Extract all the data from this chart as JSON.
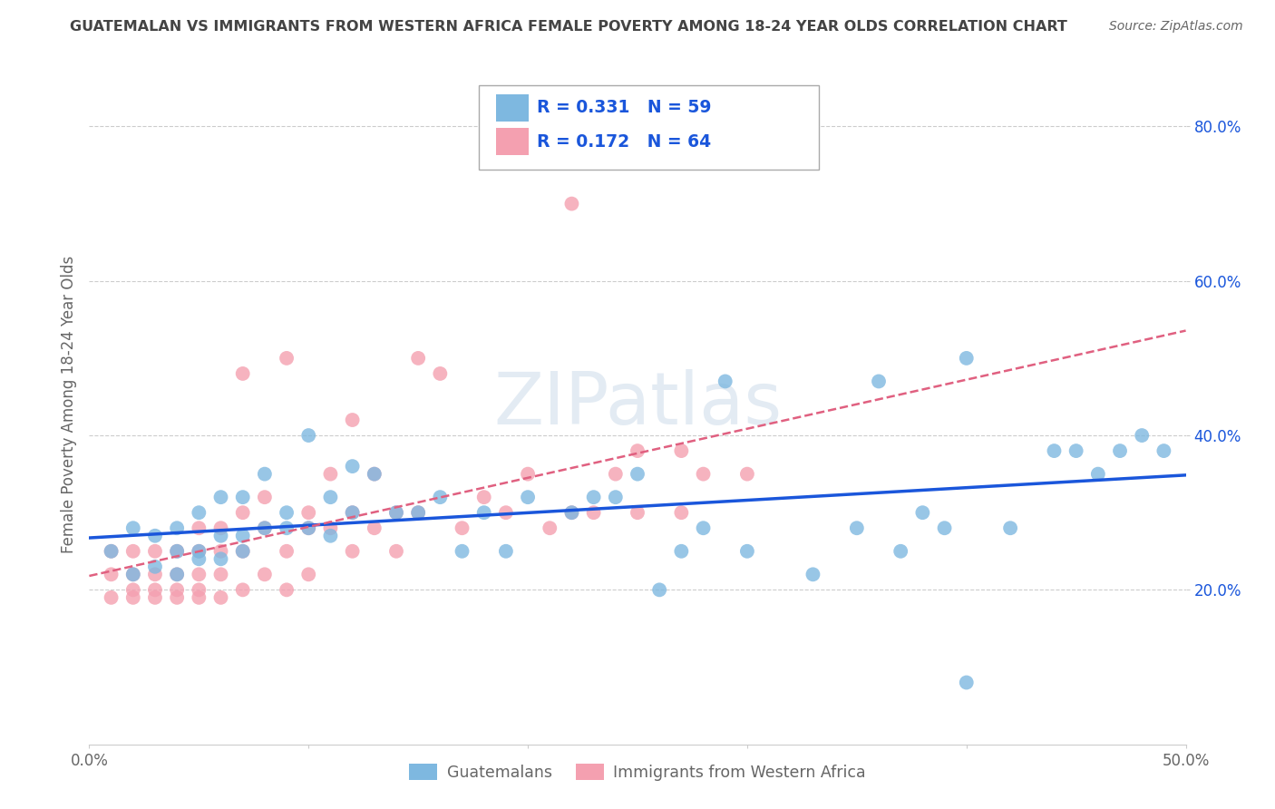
{
  "title": "GUATEMALAN VS IMMIGRANTS FROM WESTERN AFRICA FEMALE POVERTY AMONG 18-24 YEAR OLDS CORRELATION CHART",
  "source": "Source: ZipAtlas.com",
  "ylabel": "Female Poverty Among 18-24 Year Olds",
  "xlim": [
    0.0,
    0.5
  ],
  "ylim": [
    0.0,
    0.88
  ],
  "xticks": [
    0.0,
    0.1,
    0.2,
    0.3,
    0.4,
    0.5
  ],
  "xticklabels": [
    "0.0%",
    "",
    "",
    "",
    "",
    "50.0%"
  ],
  "yticks": [
    0.2,
    0.4,
    0.6,
    0.8
  ],
  "yticklabels": [
    "20.0%",
    "40.0%",
    "60.0%",
    "80.0%"
  ],
  "series1_color": "#7eb8e0",
  "series2_color": "#f4a0b0",
  "series1_label": "Guatemalans",
  "series2_label": "Immigrants from Western Africa",
  "R1": 0.331,
  "N1": 59,
  "R2": 0.172,
  "N2": 64,
  "watermark": "ZIPatlas",
  "background_color": "#ffffff",
  "grid_color": "#cccccc",
  "title_color": "#444444",
  "axis_color": "#666666",
  "legend_text_color": "#1a56db",
  "tick_color": "#1a56db",
  "line1_color": "#1a56db",
  "line2_color": "#e06080",
  "series1_x": [
    0.01,
    0.02,
    0.02,
    0.03,
    0.03,
    0.04,
    0.04,
    0.04,
    0.05,
    0.05,
    0.05,
    0.06,
    0.06,
    0.06,
    0.07,
    0.07,
    0.07,
    0.08,
    0.08,
    0.09,
    0.09,
    0.1,
    0.1,
    0.11,
    0.11,
    0.12,
    0.12,
    0.13,
    0.14,
    0.15,
    0.16,
    0.17,
    0.18,
    0.19,
    0.2,
    0.22,
    0.23,
    0.24,
    0.25,
    0.26,
    0.27,
    0.28,
    0.29,
    0.3,
    0.33,
    0.35,
    0.36,
    0.37,
    0.38,
    0.39,
    0.4,
    0.42,
    0.44,
    0.45,
    0.46,
    0.47,
    0.48,
    0.49,
    0.4
  ],
  "series1_y": [
    0.25,
    0.22,
    0.28,
    0.27,
    0.23,
    0.28,
    0.25,
    0.22,
    0.25,
    0.3,
    0.24,
    0.27,
    0.32,
    0.24,
    0.32,
    0.27,
    0.25,
    0.28,
    0.35,
    0.3,
    0.28,
    0.28,
    0.4,
    0.32,
    0.27,
    0.36,
    0.3,
    0.35,
    0.3,
    0.3,
    0.32,
    0.25,
    0.3,
    0.25,
    0.32,
    0.3,
    0.32,
    0.32,
    0.35,
    0.2,
    0.25,
    0.28,
    0.47,
    0.25,
    0.22,
    0.28,
    0.47,
    0.25,
    0.3,
    0.28,
    0.08,
    0.28,
    0.38,
    0.38,
    0.35,
    0.38,
    0.4,
    0.38,
    0.5
  ],
  "series2_x": [
    0.01,
    0.01,
    0.01,
    0.02,
    0.02,
    0.02,
    0.02,
    0.03,
    0.03,
    0.03,
    0.03,
    0.04,
    0.04,
    0.04,
    0.04,
    0.05,
    0.05,
    0.05,
    0.05,
    0.05,
    0.06,
    0.06,
    0.06,
    0.06,
    0.07,
    0.07,
    0.07,
    0.07,
    0.08,
    0.08,
    0.08,
    0.09,
    0.09,
    0.09,
    0.1,
    0.1,
    0.1,
    0.11,
    0.11,
    0.12,
    0.12,
    0.12,
    0.13,
    0.13,
    0.14,
    0.14,
    0.15,
    0.15,
    0.16,
    0.17,
    0.18,
    0.19,
    0.2,
    0.21,
    0.22,
    0.22,
    0.23,
    0.24,
    0.25,
    0.25,
    0.27,
    0.28,
    0.27,
    0.3
  ],
  "series2_y": [
    0.22,
    0.19,
    0.25,
    0.2,
    0.22,
    0.25,
    0.19,
    0.22,
    0.2,
    0.25,
    0.19,
    0.25,
    0.2,
    0.22,
    0.19,
    0.28,
    0.22,
    0.19,
    0.25,
    0.2,
    0.25,
    0.22,
    0.28,
    0.19,
    0.3,
    0.25,
    0.48,
    0.2,
    0.28,
    0.32,
    0.22,
    0.5,
    0.25,
    0.2,
    0.28,
    0.3,
    0.22,
    0.35,
    0.28,
    0.3,
    0.25,
    0.42,
    0.35,
    0.28,
    0.3,
    0.25,
    0.5,
    0.3,
    0.48,
    0.28,
    0.32,
    0.3,
    0.35,
    0.28,
    0.3,
    0.7,
    0.3,
    0.35,
    0.3,
    0.38,
    0.3,
    0.35,
    0.38,
    0.35
  ]
}
